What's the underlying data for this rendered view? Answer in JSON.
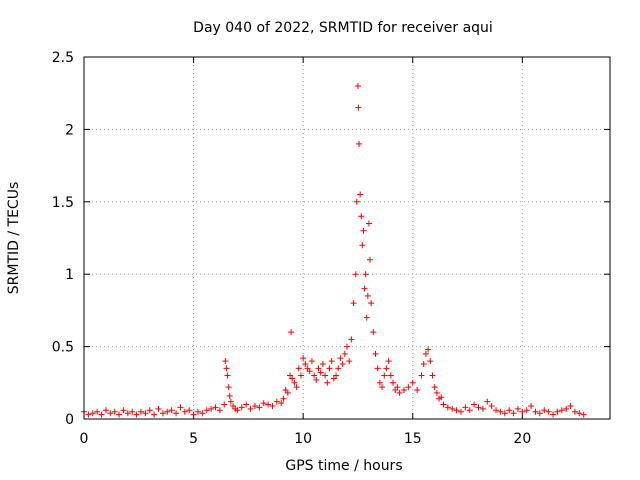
{
  "chart_data": {
    "type": "scatter",
    "title": "Day 040 of 2022, SRMTID for receiver aqui",
    "xlabel": "GPS time / hours",
    "ylabel": "SRMTID / TECUs",
    "xlim": [
      0,
      24
    ],
    "ylim": [
      0,
      2.5
    ],
    "x_ticks": [
      0,
      5,
      10,
      15,
      20
    ],
    "y_ticks": [
      0,
      0.5,
      1,
      1.5,
      2,
      2.5
    ],
    "x_tick_labels": [
      "0",
      "5",
      "10",
      "15",
      "20"
    ],
    "y_tick_labels": [
      "0",
      "0.5",
      "1",
      "1.5",
      "2",
      "2.5"
    ],
    "grid": true,
    "marker": "+",
    "colors": {
      "series": "#ff0000",
      "grid": "#a0a0a0",
      "axis": "#000000"
    },
    "series": [
      {
        "name": "SRMTID",
        "points": [
          [
            0.0,
            0.05
          ],
          [
            0.2,
            0.03
          ],
          [
            0.4,
            0.04
          ],
          [
            0.6,
            0.05
          ],
          [
            0.8,
            0.03
          ],
          [
            1.0,
            0.06
          ],
          [
            1.2,
            0.04
          ],
          [
            1.4,
            0.05
          ],
          [
            1.6,
            0.03
          ],
          [
            1.8,
            0.06
          ],
          [
            2.0,
            0.04
          ],
          [
            2.2,
            0.05
          ],
          [
            2.4,
            0.03
          ],
          [
            2.6,
            0.05
          ],
          [
            2.8,
            0.04
          ],
          [
            3.0,
            0.06
          ],
          [
            3.2,
            0.03
          ],
          [
            3.4,
            0.07
          ],
          [
            3.6,
            0.04
          ],
          [
            3.8,
            0.05
          ],
          [
            4.0,
            0.06
          ],
          [
            4.2,
            0.04
          ],
          [
            4.4,
            0.08
          ],
          [
            4.6,
            0.05
          ],
          [
            4.8,
            0.06
          ],
          [
            5.0,
            0.03
          ],
          [
            5.2,
            0.05
          ],
          [
            5.4,
            0.04
          ],
          [
            5.6,
            0.06
          ],
          [
            5.8,
            0.07
          ],
          [
            6.0,
            0.08
          ],
          [
            6.2,
            0.06
          ],
          [
            6.4,
            0.1
          ],
          [
            6.45,
            0.4
          ],
          [
            6.5,
            0.35
          ],
          [
            6.55,
            0.3
          ],
          [
            6.6,
            0.22
          ],
          [
            6.65,
            0.16
          ],
          [
            6.7,
            0.12
          ],
          [
            6.8,
            0.09
          ],
          [
            6.9,
            0.07
          ],
          [
            7.0,
            0.06
          ],
          [
            7.2,
            0.08
          ],
          [
            7.4,
            0.1
          ],
          [
            7.6,
            0.07
          ],
          [
            7.8,
            0.09
          ],
          [
            8.0,
            0.08
          ],
          [
            8.2,
            0.11
          ],
          [
            8.4,
            0.1
          ],
          [
            8.6,
            0.09
          ],
          [
            8.8,
            0.12
          ],
          [
            9.0,
            0.11
          ],
          [
            9.1,
            0.14
          ],
          [
            9.2,
            0.2
          ],
          [
            9.3,
            0.18
          ],
          [
            9.4,
            0.3
          ],
          [
            9.45,
            0.6
          ],
          [
            9.5,
            0.28
          ],
          [
            9.6,
            0.25
          ],
          [
            9.7,
            0.22
          ],
          [
            9.8,
            0.35
          ],
          [
            9.9,
            0.3
          ],
          [
            10.0,
            0.42
          ],
          [
            10.1,
            0.38
          ],
          [
            10.2,
            0.35
          ],
          [
            10.3,
            0.33
          ],
          [
            10.4,
            0.4
          ],
          [
            10.5,
            0.3
          ],
          [
            10.6,
            0.27
          ],
          [
            10.7,
            0.35
          ],
          [
            10.8,
            0.32
          ],
          [
            10.9,
            0.38
          ],
          [
            11.0,
            0.3
          ],
          [
            11.1,
            0.25
          ],
          [
            11.2,
            0.35
          ],
          [
            11.3,
            0.4
          ],
          [
            11.4,
            0.28
          ],
          [
            11.5,
            0.3
          ],
          [
            11.6,
            0.35
          ],
          [
            11.7,
            0.42
          ],
          [
            11.8,
            0.38
          ],
          [
            11.9,
            0.45
          ],
          [
            12.0,
            0.5
          ],
          [
            12.1,
            0.4
          ],
          [
            12.2,
            0.55
          ],
          [
            12.3,
            0.8
          ],
          [
            12.4,
            1.0
          ],
          [
            12.45,
            1.5
          ],
          [
            12.5,
            2.3
          ],
          [
            12.52,
            2.15
          ],
          [
            12.55,
            1.9
          ],
          [
            12.6,
            1.55
          ],
          [
            12.65,
            1.4
          ],
          [
            12.7,
            1.2
          ],
          [
            12.75,
            1.3
          ],
          [
            12.8,
            0.9
          ],
          [
            12.85,
            1.0
          ],
          [
            12.9,
            0.7
          ],
          [
            12.95,
            0.85
          ],
          [
            13.0,
            1.35
          ],
          [
            13.05,
            1.1
          ],
          [
            13.1,
            0.8
          ],
          [
            13.2,
            0.6
          ],
          [
            13.3,
            0.45
          ],
          [
            13.4,
            0.35
          ],
          [
            13.5,
            0.25
          ],
          [
            13.6,
            0.22
          ],
          [
            13.7,
            0.3
          ],
          [
            13.8,
            0.35
          ],
          [
            13.9,
            0.4
          ],
          [
            14.0,
            0.3
          ],
          [
            14.1,
            0.25
          ],
          [
            14.2,
            0.2
          ],
          [
            14.3,
            0.22
          ],
          [
            14.4,
            0.18
          ],
          [
            14.6,
            0.2
          ],
          [
            14.8,
            0.22
          ],
          [
            15.0,
            0.25
          ],
          [
            15.2,
            0.2
          ],
          [
            15.4,
            0.3
          ],
          [
            15.5,
            0.38
          ],
          [
            15.6,
            0.45
          ],
          [
            15.7,
            0.48
          ],
          [
            15.8,
            0.4
          ],
          [
            15.9,
            0.3
          ],
          [
            16.0,
            0.22
          ],
          [
            16.1,
            0.18
          ],
          [
            16.2,
            0.14
          ],
          [
            16.3,
            0.15
          ],
          [
            16.4,
            0.1
          ],
          [
            16.6,
            0.08
          ],
          [
            16.8,
            0.07
          ],
          [
            17.0,
            0.06
          ],
          [
            17.2,
            0.05
          ],
          [
            17.4,
            0.08
          ],
          [
            17.6,
            0.06
          ],
          [
            17.8,
            0.1
          ],
          [
            18.0,
            0.08
          ],
          [
            18.2,
            0.07
          ],
          [
            18.4,
            0.12
          ],
          [
            18.6,
            0.09
          ],
          [
            18.8,
            0.06
          ],
          [
            19.0,
            0.05
          ],
          [
            19.2,
            0.04
          ],
          [
            19.4,
            0.06
          ],
          [
            19.6,
            0.04
          ],
          [
            19.8,
            0.07
          ],
          [
            20.0,
            0.05
          ],
          [
            20.2,
            0.06
          ],
          [
            20.4,
            0.09
          ],
          [
            20.6,
            0.05
          ],
          [
            20.8,
            0.04
          ],
          [
            21.0,
            0.06
          ],
          [
            21.2,
            0.05
          ],
          [
            21.4,
            0.03
          ],
          [
            21.6,
            0.05
          ],
          [
            21.8,
            0.06
          ],
          [
            22.0,
            0.07
          ],
          [
            22.2,
            0.09
          ],
          [
            22.4,
            0.05
          ],
          [
            22.6,
            0.04
          ],
          [
            22.8,
            0.03
          ]
        ]
      }
    ]
  }
}
